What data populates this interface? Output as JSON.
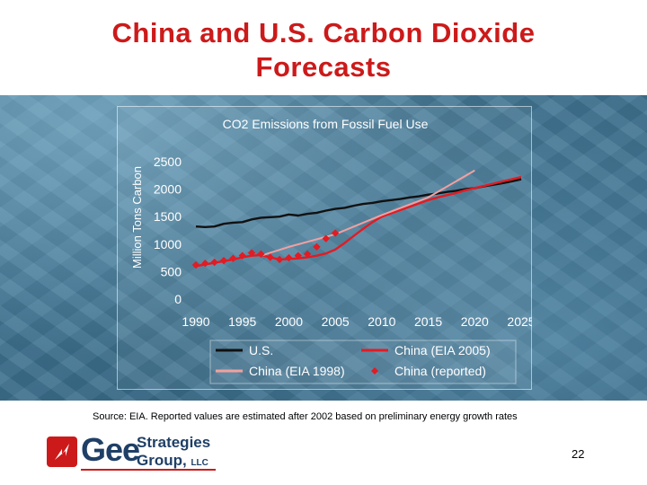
{
  "slide": {
    "title_line1": "China and U.S. Carbon Dioxide",
    "title_line2": "Forecasts",
    "source": "Source: EIA. Reported values are estimated after 2002 based on preliminary energy growth rates",
    "page_number": "22",
    "logo": {
      "name": "Gee",
      "line1": "Strategies",
      "line2": "Group,",
      "suffix": "LLC"
    },
    "colors": {
      "title": "#cc1a1a",
      "us": "#111111",
      "china_2005": "#e31b23",
      "china_1998": "#f2a0a0",
      "china_reported": "#e31b23",
      "axis_text": "#ffffff"
    }
  },
  "chart_data": {
    "type": "line",
    "title": "CO2 Emissions from Fossil Fuel Use",
    "xlabel": "",
    "ylabel": "Million Tons Carbon",
    "xlim": [
      1990,
      2025
    ],
    "ylim": [
      0,
      2500
    ],
    "x_ticks": [
      1990,
      1995,
      2000,
      2005,
      2010,
      2015,
      2020,
      2025
    ],
    "y_ticks": [
      0,
      500,
      1000,
      1500,
      2000,
      2500
    ],
    "grid": false,
    "legend": "bottom",
    "series": [
      {
        "name": "U.S.",
        "style": "line",
        "points": [
          [
            1990,
            1320
          ],
          [
            1991,
            1310
          ],
          [
            1992,
            1320
          ],
          [
            1993,
            1370
          ],
          [
            1994,
            1390
          ],
          [
            1995,
            1400
          ],
          [
            1996,
            1450
          ],
          [
            1997,
            1480
          ],
          [
            1998,
            1490
          ],
          [
            1999,
            1500
          ],
          [
            2000,
            1540
          ],
          [
            2001,
            1520
          ],
          [
            2002,
            1550
          ],
          [
            2003,
            1570
          ],
          [
            2004,
            1610
          ],
          [
            2005,
            1640
          ],
          [
            2006,
            1660
          ],
          [
            2007,
            1700
          ],
          [
            2008,
            1730
          ],
          [
            2009,
            1750
          ],
          [
            2010,
            1780
          ],
          [
            2011,
            1800
          ],
          [
            2012,
            1820
          ],
          [
            2013,
            1850
          ],
          [
            2014,
            1870
          ],
          [
            2015,
            1900
          ],
          [
            2016,
            1920
          ],
          [
            2017,
            1950
          ],
          [
            2018,
            1970
          ],
          [
            2019,
            2000
          ],
          [
            2020,
            2020
          ],
          [
            2021,
            2050
          ],
          [
            2022,
            2080
          ],
          [
            2023,
            2110
          ],
          [
            2024,
            2140
          ],
          [
            2025,
            2180
          ]
        ]
      },
      {
        "name": "China (EIA 2005)",
        "style": "line",
        "points": [
          [
            1990,
            600
          ],
          [
            1991,
            630
          ],
          [
            1992,
            660
          ],
          [
            1993,
            690
          ],
          [
            1994,
            720
          ],
          [
            1995,
            760
          ],
          [
            1996,
            790
          ],
          [
            1997,
            800
          ],
          [
            1998,
            760
          ],
          [
            1999,
            720
          ],
          [
            2000,
            730
          ],
          [
            2001,
            740
          ],
          [
            2002,
            760
          ],
          [
            2003,
            790
          ],
          [
            2004,
            830
          ],
          [
            2005,
            900
          ],
          [
            2006,
            1020
          ],
          [
            2007,
            1150
          ],
          [
            2008,
            1280
          ],
          [
            2009,
            1400
          ],
          [
            2010,
            1500
          ],
          [
            2011,
            1560
          ],
          [
            2012,
            1620
          ],
          [
            2013,
            1680
          ],
          [
            2014,
            1740
          ],
          [
            2015,
            1800
          ],
          [
            2016,
            1850
          ],
          [
            2017,
            1890
          ],
          [
            2018,
            1930
          ],
          [
            2019,
            1980
          ],
          [
            2020,
            2020
          ],
          [
            2021,
            2060
          ],
          [
            2022,
            2100
          ],
          [
            2023,
            2140
          ],
          [
            2024,
            2180
          ],
          [
            2025,
            2220
          ]
        ]
      },
      {
        "name": "China (EIA 1998)",
        "style": "line",
        "points": [
          [
            1997,
            790
          ],
          [
            2000,
            950
          ],
          [
            2005,
            1180
          ],
          [
            2010,
            1530
          ],
          [
            2015,
            1850
          ],
          [
            2020,
            2340
          ]
        ]
      },
      {
        "name": "China (reported)",
        "style": "marker",
        "points": [
          [
            1990,
            620
          ],
          [
            1991,
            650
          ],
          [
            1992,
            670
          ],
          [
            1993,
            700
          ],
          [
            1994,
            740
          ],
          [
            1995,
            790
          ],
          [
            1996,
            840
          ],
          [
            1997,
            820
          ],
          [
            1998,
            760
          ],
          [
            1999,
            720
          ],
          [
            2000,
            750
          ],
          [
            2001,
            790
          ],
          [
            2002,
            820
          ],
          [
            2003,
            950
          ],
          [
            2004,
            1100
          ],
          [
            2005,
            1200
          ]
        ]
      }
    ]
  }
}
